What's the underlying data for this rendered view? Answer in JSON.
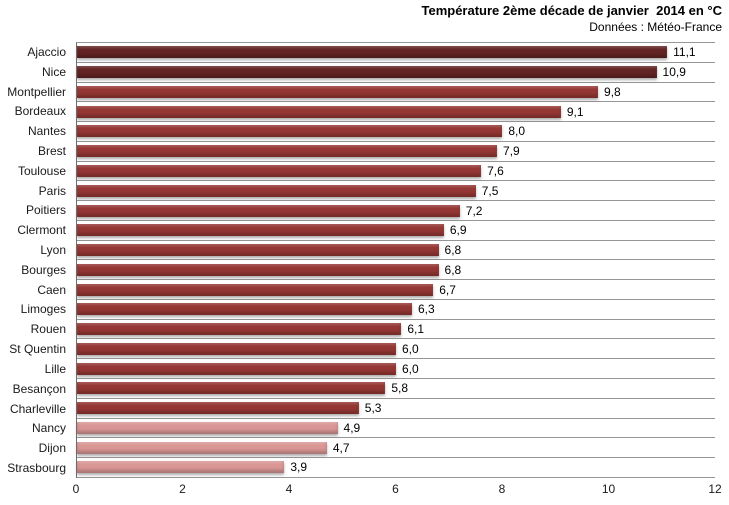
{
  "header": {
    "title": "Température 2ème décade de janvier  2014 en °C",
    "subtitle": "Données : Météo-France"
  },
  "chart_data": {
    "type": "bar",
    "orientation": "horizontal",
    "title": "Température 2ème décade de janvier  2014 en °C",
    "subtitle": "Données : Météo-France",
    "categories": [
      "Ajaccio",
      "Nice",
      "Montpellier",
      "Bordeaux",
      "Nantes",
      "Brest",
      "Toulouse",
      "Paris",
      "Poitiers",
      "Clermont",
      "Lyon",
      "Bourges",
      "Caen",
      "Limoges",
      "Rouen",
      "St Quentin",
      "Lille",
      "Besançon",
      "Charleville",
      "Nancy",
      "Dijon",
      "Strasbourg"
    ],
    "values": [
      11.1,
      10.9,
      9.8,
      9.1,
      8.0,
      7.9,
      7.6,
      7.5,
      7.2,
      6.9,
      6.8,
      6.8,
      6.7,
      6.3,
      6.1,
      6.0,
      6.0,
      5.8,
      5.3,
      4.9,
      4.7,
      3.9
    ],
    "value_labels": [
      "11,1",
      "10,9",
      "9,8",
      "9,1",
      "8,0",
      "7,9",
      "7,6",
      "7,5",
      "7,2",
      "6,9",
      "6,8",
      "6,8",
      "6,7",
      "6,3",
      "6,1",
      "6,0",
      "6,0",
      "5,8",
      "5,3",
      "4,9",
      "4,7",
      "3,9"
    ],
    "bar_colors": [
      "#632423",
      "#632423",
      "#953734",
      "#953734",
      "#953734",
      "#953734",
      "#953734",
      "#953734",
      "#953734",
      "#953734",
      "#953734",
      "#953734",
      "#953734",
      "#953734",
      "#953734",
      "#953734",
      "#953734",
      "#953734",
      "#953734",
      "#D99694",
      "#D99694",
      "#D99694"
    ],
    "color_legend": {
      "dark_red": "#632423",
      "brick_red": "#953734",
      "light_pink": "#D99694"
    },
    "xlabel": "",
    "ylabel": "",
    "xlim": [
      0,
      12
    ],
    "x_ticks": [
      0,
      2,
      4,
      6,
      8,
      10,
      12
    ],
    "grid": "horizontal category separator lines",
    "legend_position": "none"
  }
}
